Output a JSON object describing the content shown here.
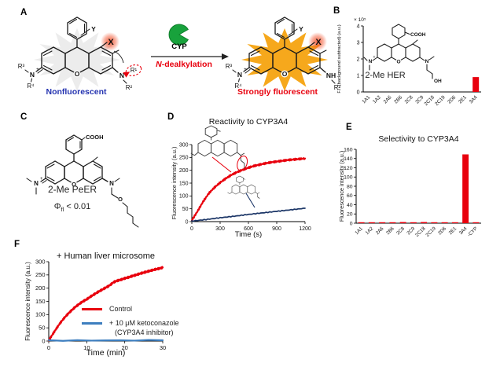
{
  "panelA": {
    "label": "A",
    "left_caption": "Nonfluorescent",
    "right_caption": "Strongly fluorescent",
    "enzyme_label": "CYP",
    "reaction_italic": "N",
    "reaction_rest": "-dealkylation",
    "atoms": {
      "r1": "R¹",
      "r2": "R²",
      "r3": "R³",
      "r4": "R⁴",
      "x": "X",
      "y": "Y",
      "n": "N",
      "nh": "NH",
      "o": "O",
      "plus": "+"
    }
  },
  "panelB": {
    "label": "B",
    "inset_name": "2-Me HER",
    "atoms": {
      "cooh": "COOH",
      "oh": "OH",
      "n": "N",
      "o": "O",
      "plus": "+"
    }
  },
  "panelC": {
    "label": "C",
    "name": "2-Me PeER",
    "phi_symbol": "Φ",
    "phi_sub": "fl",
    "phi_value": "< 0.01",
    "atoms": {
      "cooh": "COOH",
      "n": "N",
      "o": "O",
      "plus": "+"
    }
  },
  "panelD": {
    "label": "D"
  },
  "panelE": {
    "label": "E"
  },
  "panelF": {
    "label": "F",
    "legend": [
      {
        "label": "Control",
        "color": "#e8000d"
      },
      {
        "label": "+ 10 μM ketoconazole",
        "label2": "(CYP3A4 inhibitor)",
        "color": "#3d7ebf"
      }
    ]
  },
  "colors": {
    "accent_red": "#e8000d",
    "navy": "#1c3667",
    "blue": "#3d7ebf",
    "starburst_yellow": "#f6a81c",
    "pacman_green": "#18a23c",
    "nonfluorescent_blue": "#2433b0"
  },
  "chart_data": [
    {
      "id": "panel-b-bars",
      "type": "bar",
      "title": "",
      "ylabel": "F.I. (background subtracted) (a.u.)",
      "y_multiplier": "× 10⁵",
      "categories": [
        "1A1",
        "1A2",
        "2A6",
        "2B6",
        "2C8",
        "2C9",
        "2C18",
        "2C19",
        "2D6",
        "2E1",
        "3A4"
      ],
      "values": [
        0,
        0,
        0,
        0,
        0,
        0,
        0,
        0,
        0,
        0,
        0.9
      ],
      "ylim": [
        0,
        4
      ],
      "yticks": [
        0,
        1,
        2,
        3,
        4
      ],
      "bar_color": "#e8000d",
      "highlight": {
        "3A4": "#e8000d"
      }
    },
    {
      "id": "panel-d-kinetics",
      "type": "line",
      "title": "Reactivity to CYP3A4",
      "xlabel": "Time (s)",
      "ylabel": "Fluorescence intensity (a.u.)",
      "xlim": [
        0,
        1200
      ],
      "ylim": [
        0,
        300
      ],
      "xticks": [
        0,
        300,
        600,
        900,
        1200
      ],
      "yticks": [
        0,
        50,
        100,
        150,
        200,
        250,
        300
      ],
      "series": [
        {
          "name": "2-Me PeER",
          "color": "#e8000d",
          "points": [
            [
              0,
              5
            ],
            [
              60,
              40
            ],
            [
              120,
              78
            ],
            [
              180,
              110
            ],
            [
              240,
              133
            ],
            [
              300,
              152
            ],
            [
              360,
              168
            ],
            [
              420,
              182
            ],
            [
              480,
              193
            ],
            [
              540,
              202
            ],
            [
              600,
              210
            ],
            [
              660,
              217
            ],
            [
              720,
              222
            ],
            [
              780,
              227
            ],
            [
              840,
              231
            ],
            [
              900,
              234
            ],
            [
              960,
              237
            ],
            [
              1020,
              240
            ],
            [
              1080,
              242
            ],
            [
              1140,
              244
            ],
            [
              1200,
              246
            ]
          ]
        },
        {
          "name": "2-Me HER",
          "color": "#1c3667",
          "points": [
            [
              0,
              2
            ],
            [
              150,
              8
            ],
            [
              300,
              15
            ],
            [
              450,
              21
            ],
            [
              600,
              28
            ],
            [
              750,
              34
            ],
            [
              900,
              40
            ],
            [
              1050,
              46
            ],
            [
              1200,
              52
            ]
          ]
        }
      ]
    },
    {
      "id": "panel-e-selectivity",
      "type": "bar",
      "title": "Selectivity to CYP3A4",
      "ylabel": "Fluorescence intensity (a.u.)",
      "categories": [
        "1A1",
        "1A2",
        "2A6",
        "2B6",
        "2C8",
        "2C9",
        "2C18",
        "2C19",
        "2D6",
        "2E1",
        "3A4",
        "-CYP"
      ],
      "values": [
        2,
        1.5,
        1,
        1.5,
        2.5,
        2,
        2.5,
        2,
        2,
        1.5,
        149,
        0.5
      ],
      "ylim": [
        0,
        160
      ],
      "yticks": [
        0,
        20,
        40,
        60,
        80,
        100,
        120,
        140,
        160
      ],
      "bar_color": "#e8000d"
    },
    {
      "id": "panel-f-microsome",
      "type": "line",
      "title": "+ Human liver microsome",
      "xlabel": "Time (min)",
      "ylabel": "Fluorescence intensity (a.u.)",
      "xlim": [
        0,
        30
      ],
      "ylim": [
        0,
        300
      ],
      "xticks": [
        0,
        10,
        20,
        30
      ],
      "yticks": [
        0,
        50,
        100,
        150,
        200,
        250,
        300
      ],
      "series": [
        {
          "name": "Control",
          "color": "#e8000d",
          "points": [
            [
              0,
              2
            ],
            [
              1,
              25
            ],
            [
              2,
              47
            ],
            [
              3,
              68
            ],
            [
              4,
              86
            ],
            [
              5,
              102
            ],
            [
              6,
              116
            ],
            [
              7,
              129
            ],
            [
              8,
              140
            ],
            [
              9,
              150
            ],
            [
              10,
              158
            ],
            [
              11,
              168
            ],
            [
              12,
              177
            ],
            [
              13,
              186
            ],
            [
              14,
              194
            ],
            [
              15,
              202
            ],
            [
              16,
              210
            ],
            [
              17,
              222
            ],
            [
              18,
              228
            ],
            [
              19,
              232
            ],
            [
              20,
              237
            ],
            [
              21,
              241
            ],
            [
              22,
              246
            ],
            [
              23,
              250
            ],
            [
              24,
              255
            ],
            [
              25,
              259
            ],
            [
              26,
              263
            ],
            [
              27,
              267
            ],
            [
              28,
              271
            ],
            [
              29,
              274
            ],
            [
              30,
              278
            ]
          ]
        },
        {
          "name": "+ 10 μM ketoconazole (CYP3A4 inhibitor)",
          "color": "#3d7ebf",
          "points": [
            [
              0,
              2
            ],
            [
              30,
              3
            ]
          ]
        }
      ]
    }
  ]
}
